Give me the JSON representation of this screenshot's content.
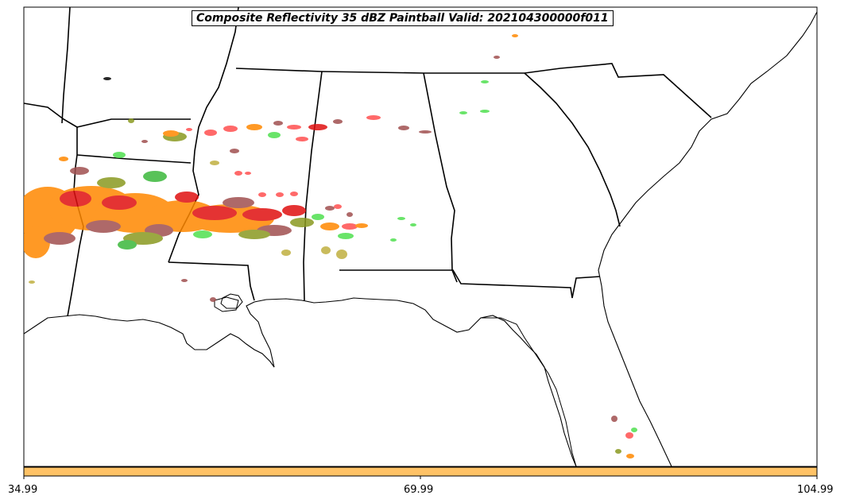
{
  "map": {
    "title": "Composite Reflectivity 35 dBZ Paintball Valid: 202104300000f011",
    "region": "Southeastern United States",
    "frame_color": "#000000",
    "land_color": "#ffffff",
    "boundary_color": "#000000"
  },
  "legend": {
    "colorbar_color": "#ffc266",
    "tick_labels": [
      "34.99",
      "69.99",
      "104.99"
    ]
  },
  "paint_colors": [
    "#ff8800",
    "#e01010",
    "#ff5050",
    "#a05050",
    "#8a9a20",
    "#3cb83c",
    "#50e050",
    "#c0b040"
  ]
}
